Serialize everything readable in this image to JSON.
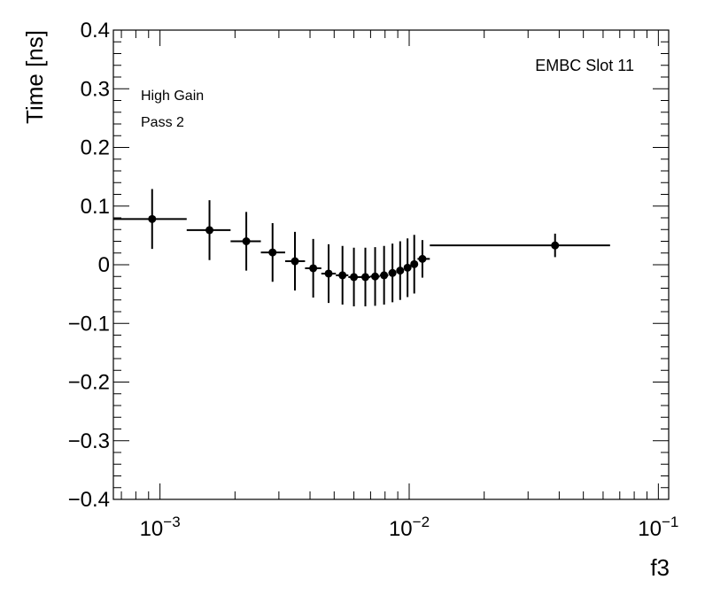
{
  "chart_data": {
    "type": "scatter",
    "title": "",
    "xlabel": "f3",
    "ylabel": "Time [ns]",
    "x_scale": "log",
    "xlim": [
      0.00065,
      0.11
    ],
    "ylim": [
      -0.4,
      0.4
    ],
    "grid": false,
    "legend": "none",
    "y_ticks": [
      {
        "value": -0.4,
        "label": "−0.4"
      },
      {
        "value": -0.3,
        "label": "−0.3"
      },
      {
        "value": -0.2,
        "label": "−0.2"
      },
      {
        "value": -0.1,
        "label": "−0.1"
      },
      {
        "value": 0.0,
        "label": "0"
      },
      {
        "value": 0.1,
        "label": "0.1"
      },
      {
        "value": 0.2,
        "label": "0.2"
      },
      {
        "value": 0.3,
        "label": "0.3"
      },
      {
        "value": 0.4,
        "label": "0.4"
      }
    ],
    "x_ticks": [
      {
        "value": 0.001,
        "base": "10",
        "exp": "−3"
      },
      {
        "value": 0.01,
        "base": "10",
        "exp": "−2"
      },
      {
        "value": 0.1,
        "base": "10",
        "exp": "−1"
      }
    ],
    "annotations": {
      "slot": "EMBC Slot 11",
      "gain": "High Gain",
      "pass": "Pass 2"
    },
    "series": [
      {
        "name": "EMBC Slot 11",
        "points": [
          {
            "x": 0.00093,
            "xlo": 0.00065,
            "xhi": 0.00128,
            "y": 0.078,
            "yerr": 0.051
          },
          {
            "x": 0.00158,
            "xlo": 0.00128,
            "xhi": 0.00192,
            "y": 0.059,
            "yerr": 0.051
          },
          {
            "x": 0.00222,
            "xlo": 0.00192,
            "xhi": 0.00254,
            "y": 0.04,
            "yerr": 0.05
          },
          {
            "x": 0.00283,
            "xlo": 0.00254,
            "xhi": 0.00318,
            "y": 0.021,
            "yerr": 0.05
          },
          {
            "x": 0.00348,
            "xlo": 0.00318,
            "xhi": 0.00382,
            "y": 0.006,
            "yerr": 0.05
          },
          {
            "x": 0.00412,
            "xlo": 0.00382,
            "xhi": 0.00444,
            "y": -0.006,
            "yerr": 0.05
          },
          {
            "x": 0.00475,
            "xlo": 0.00444,
            "xhi": 0.00508,
            "y": -0.015,
            "yerr": 0.05
          },
          {
            "x": 0.0054,
            "xlo": 0.00508,
            "xhi": 0.0057,
            "y": -0.018,
            "yerr": 0.05
          },
          {
            "x": 0.006,
            "xlo": 0.0057,
            "xhi": 0.00635,
            "y": -0.021,
            "yerr": 0.05
          },
          {
            "x": 0.00667,
            "xlo": 0.00635,
            "xhi": 0.00698,
            "y": -0.021,
            "yerr": 0.05
          },
          {
            "x": 0.0073,
            "xlo": 0.00698,
            "xhi": 0.00762,
            "y": -0.02,
            "yerr": 0.05
          },
          {
            "x": 0.00793,
            "xlo": 0.00762,
            "xhi": 0.00825,
            "y": -0.018,
            "yerr": 0.05
          },
          {
            "x": 0.00857,
            "xlo": 0.00825,
            "xhi": 0.00888,
            "y": -0.014,
            "yerr": 0.05
          },
          {
            "x": 0.0092,
            "xlo": 0.00888,
            "xhi": 0.00952,
            "y": -0.01,
            "yerr": 0.05
          },
          {
            "x": 0.00985,
            "xlo": 0.00952,
            "xhi": 0.01015,
            "y": -0.005,
            "yerr": 0.05
          },
          {
            "x": 0.01048,
            "xlo": 0.01015,
            "xhi": 0.0108,
            "y": 0.001,
            "yerr": 0.05
          },
          {
            "x": 0.0113,
            "xlo": 0.0108,
            "xhi": 0.0121,
            "y": 0.01,
            "yerr": 0.032
          },
          {
            "x": 0.0385,
            "xlo": 0.0121,
            "xhi": 0.064,
            "y": 0.033,
            "yerr": 0.02
          }
        ]
      }
    ]
  }
}
